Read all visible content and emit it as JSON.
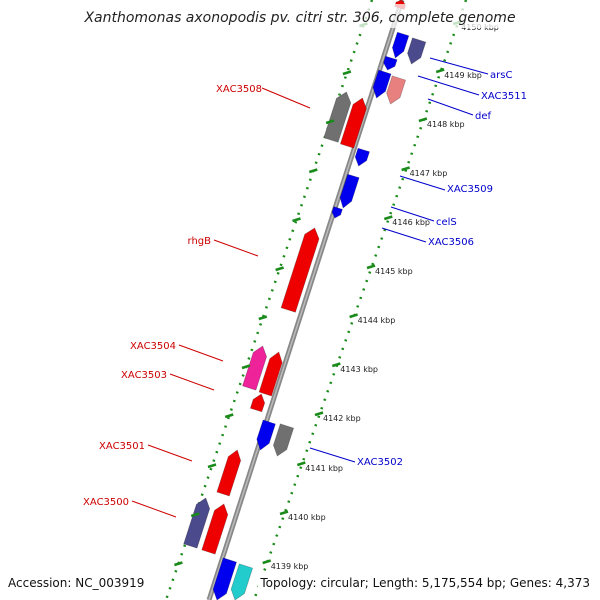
{
  "title": "Xanthomonas axonopodis pv. citri str. 306, complete genome",
  "footer": {
    "accession": "Accession: NC_003919",
    "topology": "Topology: circular; Length: 5,175,554 bp; Genes: 4,373"
  },
  "colors": {
    "backbone": "#888888",
    "ruler": "#1a8a1a",
    "forward_label": "#cc0000",
    "reverse_label": "#0000cc",
    "red": "#ee0000",
    "blue": "#0000ee",
    "gray": "#707070",
    "slate": "#4a4a8c",
    "pink": "#ee2299",
    "salmon": "#e88080",
    "cyan": "#22cccc"
  },
  "ticks": [
    "4150 kbp",
    "4149 kbp",
    "4148 kbp",
    "4147 kbp",
    "4146 kbp",
    "4145 kbp",
    "4144 kbp",
    "4143 kbp",
    "4142 kbp",
    "4141 kbp",
    "4140 kbp",
    "4139 kbp"
  ],
  "forward_genes": [
    {
      "label": "XAC3508"
    },
    {
      "label": "rhgB"
    },
    {
      "label": "XAC3504"
    },
    {
      "label": "XAC3503"
    },
    {
      "label": "XAC3501"
    },
    {
      "label": "XAC3500"
    }
  ],
  "reverse_genes": [
    {
      "label": "arsC"
    },
    {
      "label": "XAC3511"
    },
    {
      "label": "def"
    },
    {
      "label": "XAC3509"
    },
    {
      "label": "celS"
    },
    {
      "label": "XAC3506"
    },
    {
      "label": "XAC3502"
    }
  ]
}
